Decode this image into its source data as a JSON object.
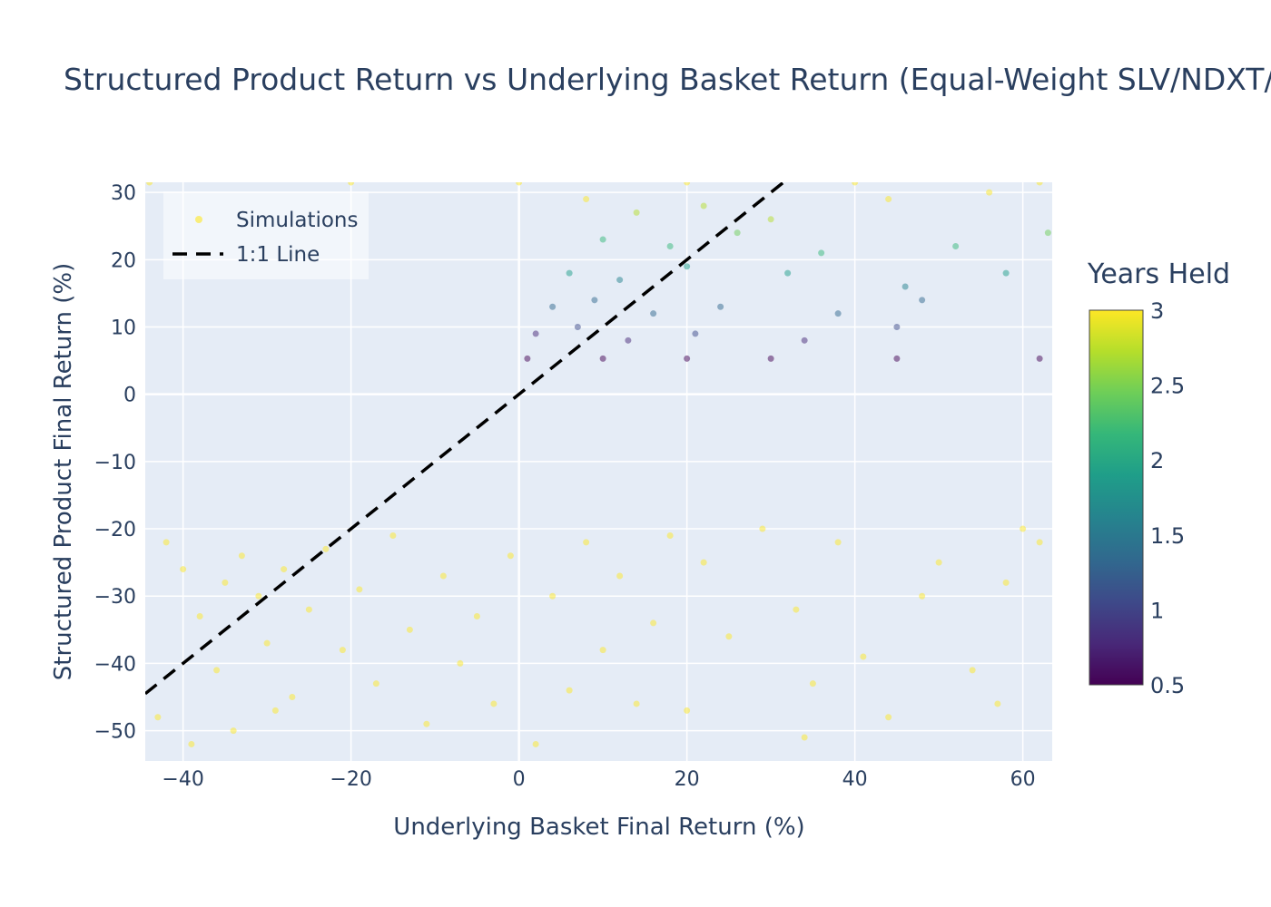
{
  "chart_data": {
    "type": "scatter",
    "title": "Structured Product Return vs Underlying Basket Return (Equal-Weight SLV/NDXT/RTY)",
    "xlabel": "Underlying Basket Final Return (%)",
    "ylabel": "Structured Product Final Return (%)",
    "xlim": [
      -44.5,
      63.5
    ],
    "ylim": [
      -54.5,
      31.5
    ],
    "x_ticks": [
      -40,
      -20,
      0,
      20,
      40,
      60
    ],
    "x_tick_labels": [
      "−40",
      "−20",
      "0",
      "20",
      "40",
      "60"
    ],
    "y_ticks": [
      -50,
      -40,
      -30,
      -20,
      -10,
      0,
      10,
      20,
      30
    ],
    "y_tick_labels": [
      "−50",
      "−40",
      "−30",
      "−20",
      "−10",
      "0",
      "10",
      "20",
      "30"
    ],
    "grid": true,
    "legend": {
      "placement": "top-left",
      "entries": [
        "Simulations",
        "1:1 Line"
      ]
    },
    "colorbar": {
      "title": "Years Held",
      "range": [
        0.5,
        3
      ],
      "ticks": [
        0.5,
        1,
        1.5,
        2,
        2.5,
        3
      ],
      "tick_labels": [
        "0.5",
        "1",
        "1.5",
        "2",
        "2.5",
        "3"
      ],
      "colorscale": "Viridis"
    },
    "series": [
      {
        "name": "Simulations",
        "marker_opacity": 0.5,
        "points": [
          {
            "x": -42,
            "y": -22,
            "years": 3
          },
          {
            "x": -40,
            "y": -26,
            "years": 3
          },
          {
            "x": -38,
            "y": -33,
            "years": 3
          },
          {
            "x": -36,
            "y": -41,
            "years": 3
          },
          {
            "x": -35,
            "y": -28,
            "years": 3
          },
          {
            "x": -33,
            "y": -24,
            "years": 3
          },
          {
            "x": -31,
            "y": -30,
            "years": 3
          },
          {
            "x": -30,
            "y": -37,
            "years": 3
          },
          {
            "x": -28,
            "y": -26,
            "years": 3
          },
          {
            "x": -27,
            "y": -45,
            "years": 3
          },
          {
            "x": -25,
            "y": -32,
            "years": 3
          },
          {
            "x": -23,
            "y": -23,
            "years": 3
          },
          {
            "x": -21,
            "y": -38,
            "years": 3
          },
          {
            "x": -19,
            "y": -29,
            "years": 3
          },
          {
            "x": -17,
            "y": -43,
            "years": 3
          },
          {
            "x": -15,
            "y": -21,
            "years": 3
          },
          {
            "x": -13,
            "y": -35,
            "years": 3
          },
          {
            "x": -11,
            "y": -49,
            "years": 3
          },
          {
            "x": -9,
            "y": -27,
            "years": 3
          },
          {
            "x": -7,
            "y": -40,
            "years": 3
          },
          {
            "x": -5,
            "y": -33,
            "years": 3
          },
          {
            "x": -3,
            "y": -46,
            "years": 3
          },
          {
            "x": -1,
            "y": -24,
            "years": 3
          },
          {
            "x": -43,
            "y": -48,
            "years": 3
          },
          {
            "x": -39,
            "y": -52,
            "years": 3
          },
          {
            "x": -34,
            "y": -50,
            "years": 3
          },
          {
            "x": -29,
            "y": -47,
            "years": 3
          },
          {
            "x": 2,
            "y": -52,
            "years": 3
          },
          {
            "x": 4,
            "y": -30,
            "years": 3
          },
          {
            "x": 6,
            "y": -44,
            "years": 3
          },
          {
            "x": 8,
            "y": -22,
            "years": 3
          },
          {
            "x": 10,
            "y": -38,
            "years": 3
          },
          {
            "x": 12,
            "y": -27,
            "years": 3
          },
          {
            "x": 14,
            "y": -46,
            "years": 3
          },
          {
            "x": 16,
            "y": -34,
            "years": 3
          },
          {
            "x": 18,
            "y": -21,
            "years": 3
          },
          {
            "x": 20,
            "y": -47,
            "years": 3
          },
          {
            "x": 22,
            "y": -25,
            "years": 3
          },
          {
            "x": 25,
            "y": -36,
            "years": 3
          },
          {
            "x": 29,
            "y": -20,
            "years": 3
          },
          {
            "x": 33,
            "y": -32,
            "years": 3
          },
          {
            "x": 34,
            "y": -51,
            "years": 3
          },
          {
            "x": 35,
            "y": -43,
            "years": 3
          },
          {
            "x": 38,
            "y": -22,
            "years": 3
          },
          {
            "x": 41,
            "y": -39,
            "years": 3
          },
          {
            "x": 44,
            "y": -48,
            "years": 3
          },
          {
            "x": 48,
            "y": -30,
            "years": 3
          },
          {
            "x": 50,
            "y": -25,
            "years": 3
          },
          {
            "x": 54,
            "y": -41,
            "years": 3
          },
          {
            "x": 58,
            "y": -28,
            "years": 3
          },
          {
            "x": 60,
            "y": -20,
            "years": 3
          },
          {
            "x": 62,
            "y": -22,
            "years": 3
          },
          {
            "x": 57,
            "y": -46,
            "years": 3
          },
          {
            "x": -44,
            "y": 31.5,
            "years": 3
          },
          {
            "x": -20,
            "y": 31.5,
            "years": 3
          },
          {
            "x": 0,
            "y": 31.5,
            "years": 3
          },
          {
            "x": 20,
            "y": 31.5,
            "years": 3
          },
          {
            "x": 40,
            "y": 31.5,
            "years": 3
          },
          {
            "x": 62,
            "y": 31.5,
            "years": 3
          },
          {
            "x": 8,
            "y": 29,
            "years": 2.9
          },
          {
            "x": 14,
            "y": 27,
            "years": 2.7
          },
          {
            "x": 22,
            "y": 28,
            "years": 2.8
          },
          {
            "x": 30,
            "y": 26,
            "years": 2.6
          },
          {
            "x": 44,
            "y": 29,
            "years": 2.9
          },
          {
            "x": 56,
            "y": 30,
            "years": 2.95
          },
          {
            "x": 10,
            "y": 23,
            "years": 2.3
          },
          {
            "x": 18,
            "y": 22,
            "years": 2.2
          },
          {
            "x": 26,
            "y": 24,
            "years": 2.4
          },
          {
            "x": 36,
            "y": 21,
            "years": 2.1
          },
          {
            "x": 52,
            "y": 22,
            "years": 2.2
          },
          {
            "x": 63,
            "y": 24,
            "years": 2.4
          },
          {
            "x": 6,
            "y": 18,
            "years": 1.8
          },
          {
            "x": 12,
            "y": 17,
            "years": 1.7
          },
          {
            "x": 20,
            "y": 19,
            "years": 1.9
          },
          {
            "x": 32,
            "y": 18,
            "years": 1.8
          },
          {
            "x": 46,
            "y": 16,
            "years": 1.6
          },
          {
            "x": 58,
            "y": 18,
            "years": 1.8
          },
          {
            "x": 4,
            "y": 13,
            "years": 1.3
          },
          {
            "x": 9,
            "y": 14,
            "years": 1.4
          },
          {
            "x": 16,
            "y": 12,
            "years": 1.2
          },
          {
            "x": 24,
            "y": 13,
            "years": 1.3
          },
          {
            "x": 38,
            "y": 12,
            "years": 1.2
          },
          {
            "x": 48,
            "y": 14,
            "years": 1.4
          },
          {
            "x": 2,
            "y": 9,
            "years": 0.9
          },
          {
            "x": 7,
            "y": 10,
            "years": 1.0
          },
          {
            "x": 13,
            "y": 8,
            "years": 0.85
          },
          {
            "x": 21,
            "y": 9,
            "years": 0.95
          },
          {
            "x": 34,
            "y": 8,
            "years": 0.8
          },
          {
            "x": 45,
            "y": 10,
            "years": 1.0
          },
          {
            "x": 1,
            "y": 5.3,
            "years": 0.5
          },
          {
            "x": 10,
            "y": 5.3,
            "years": 0.5
          },
          {
            "x": 20,
            "y": 5.3,
            "years": 0.5
          },
          {
            "x": 30,
            "y": 5.3,
            "years": 0.5
          },
          {
            "x": 45,
            "y": 5.3,
            "years": 0.5
          },
          {
            "x": 62,
            "y": 5.3,
            "years": 0.5
          }
        ]
      },
      {
        "name": "1:1 Line",
        "style": "dashed",
        "color": "#000000",
        "x": [
          -44.5,
          31.5
        ],
        "y": [
          -44.5,
          31.5
        ]
      }
    ]
  }
}
